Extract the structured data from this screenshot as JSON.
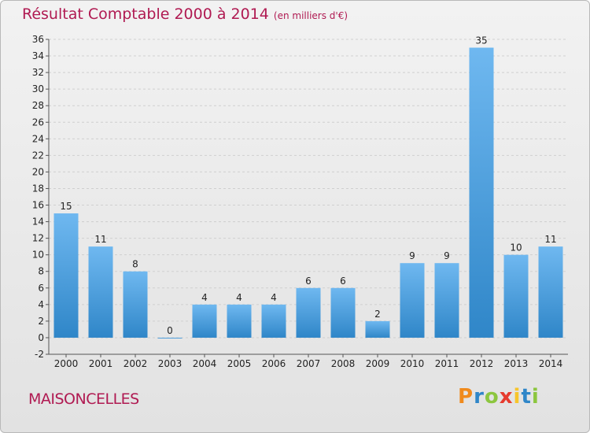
{
  "colors": {
    "title": "#b01a52",
    "bar_top": "#6fb8f0",
    "bar_bottom": "#2f86c8",
    "grid": "#cfcfcf",
    "axis_text": "#222222"
  },
  "header": {
    "title": "Résultat Comptable 2000 à 2014",
    "unit": "(en milliers d'€)"
  },
  "footer": {
    "city": "MAISONCELLES",
    "brand_letters": [
      "P",
      "r",
      "o",
      "x",
      "i",
      "t",
      "i"
    ],
    "brand_colors": [
      "#f08a1c",
      "#2f86c8",
      "#8cc63f",
      "#e63b2e",
      "#f7c52b",
      "#2f86c8",
      "#8cc63f"
    ]
  },
  "chart_data": {
    "type": "bar",
    "title": "Résultat Comptable 2000 à 2014",
    "subtitle": "(en milliers d'€)",
    "xlabel": "",
    "ylabel": "",
    "categories": [
      "2000",
      "2001",
      "2002",
      "2003",
      "2004",
      "2005",
      "2006",
      "2007",
      "2008",
      "2009",
      "2010",
      "2011",
      "2012",
      "2013",
      "2014"
    ],
    "values": [
      15,
      11,
      8,
      0,
      4,
      4,
      4,
      6,
      6,
      2,
      9,
      9,
      35,
      10,
      11
    ],
    "ylim": [
      -2,
      36
    ],
    "yticks": [
      -2,
      0,
      2,
      4,
      6,
      8,
      10,
      12,
      14,
      16,
      18,
      20,
      22,
      24,
      26,
      28,
      30,
      32,
      34,
      36
    ],
    "grid": "horizontal-dashed",
    "legend": "none"
  }
}
